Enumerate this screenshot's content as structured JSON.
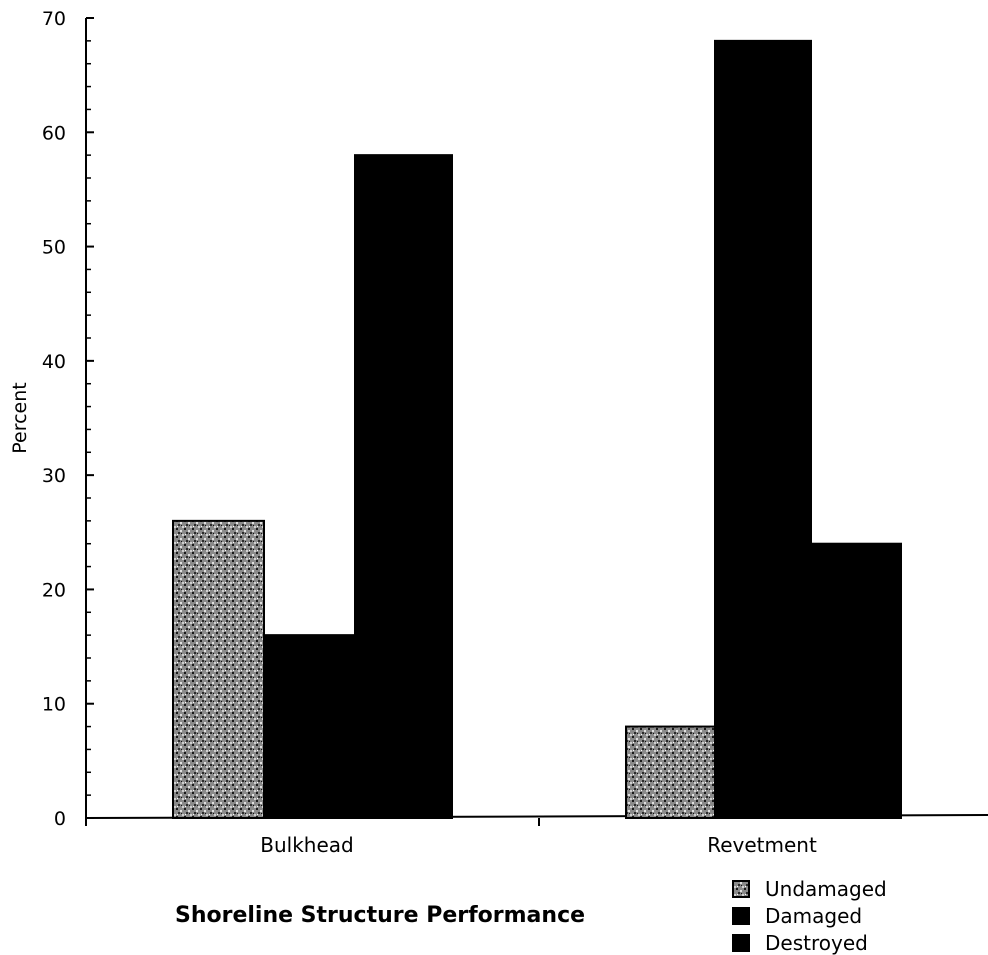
{
  "chart_data": {
    "type": "bar",
    "title": "Shoreline Structure Performance",
    "xlabel": "",
    "ylabel": "Percent",
    "ylim": [
      0,
      70
    ],
    "yticks": [
      0,
      10,
      20,
      30,
      40,
      50,
      60,
      70
    ],
    "categories": [
      "Bulkhead",
      "Revetment"
    ],
    "series": [
      {
        "name": "Undamaged",
        "values": [
          26,
          8
        ],
        "color": "#6b6b6b",
        "pattern": "speckled"
      },
      {
        "name": "Damaged",
        "values": [
          16,
          68
        ],
        "color": "#000000",
        "pattern": "solid"
      },
      {
        "name": "Destroyed",
        "values": [
          58,
          24
        ],
        "color": "#000000",
        "pattern": "solid"
      }
    ],
    "legend_position": "bottom-right",
    "grid": false
  }
}
